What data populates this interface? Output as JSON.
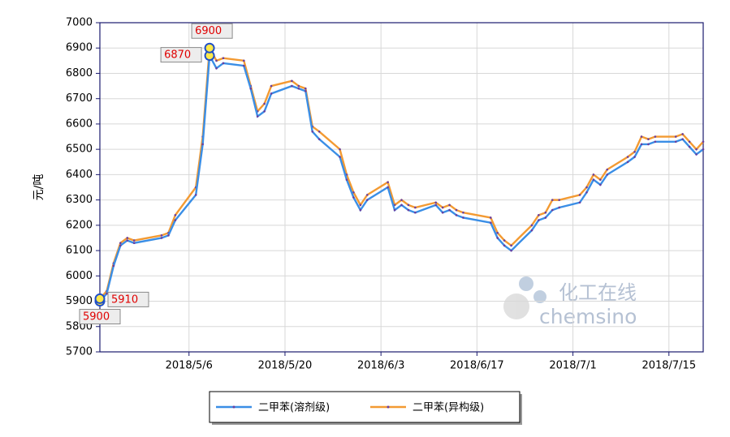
{
  "chart_data": {
    "type": "line",
    "y_label": "元/吨",
    "x": [
      "2018/4/23",
      "2018/4/24",
      "2018/4/25",
      "2018/4/26",
      "2018/4/27",
      "2018/4/28",
      "2018/5/2",
      "2018/5/3",
      "2018/5/4",
      "2018/5/7",
      "2018/5/8",
      "2018/5/9",
      "2018/5/10",
      "2018/5/11",
      "2018/5/14",
      "2018/5/15",
      "2018/5/16",
      "2018/5/17",
      "2018/5/18",
      "2018/5/21",
      "2018/5/22",
      "2018/5/23",
      "2018/5/24",
      "2018/5/25",
      "2018/5/28",
      "2018/5/29",
      "2018/5/30",
      "2018/5/31",
      "2018/6/1",
      "2018/6/4",
      "2018/6/5",
      "2018/6/6",
      "2018/6/7",
      "2018/6/8",
      "2018/6/11",
      "2018/6/12",
      "2018/6/13",
      "2018/6/14",
      "2018/6/15",
      "2018/6/19",
      "2018/6/20",
      "2018/6/21",
      "2018/6/22",
      "2018/6/25",
      "2018/6/26",
      "2018/6/27",
      "2018/6/28",
      "2018/6/29",
      "2018/7/2",
      "2018/7/3",
      "2018/7/4",
      "2018/7/5",
      "2018/7/6",
      "2018/7/9",
      "2018/7/10",
      "2018/7/11",
      "2018/7/12",
      "2018/7/13",
      "2018/7/16",
      "2018/7/17",
      "2018/7/18",
      "2018/7/19",
      "2018/7/20"
    ],
    "series": [
      {
        "name": "二甲苯(溶剂级)",
        "color": "#3a8ee6",
        "values": [
          5900,
          5930,
          6040,
          6120,
          6140,
          6130,
          6150,
          6160,
          6220,
          6320,
          6520,
          6870,
          6820,
          6840,
          6830,
          6740,
          6630,
          6650,
          6720,
          6750,
          6740,
          6730,
          6570,
          6540,
          6470,
          6380,
          6310,
          6260,
          6300,
          6350,
          6260,
          6280,
          6260,
          6250,
          6280,
          6250,
          6260,
          6240,
          6230,
          6210,
          6150,
          6120,
          6100,
          6180,
          6220,
          6230,
          6260,
          6270,
          6290,
          6330,
          6380,
          6360,
          6400,
          6450,
          6470,
          6520,
          6520,
          6530,
          6530,
          6540,
          6510,
          6480,
          6500
        ]
      },
      {
        "name": "二甲苯(异构级)",
        "color": "#f39a32",
        "values": [
          5910,
          5940,
          6050,
          6130,
          6150,
          6140,
          6160,
          6170,
          6240,
          6350,
          6550,
          6900,
          6850,
          6860,
          6850,
          6750,
          6650,
          6680,
          6750,
          6770,
          6750,
          6740,
          6590,
          6570,
          6500,
          6400,
          6330,
          6280,
          6320,
          6370,
          6280,
          6300,
          6280,
          6270,
          6290,
          6270,
          6280,
          6260,
          6250,
          6230,
          6170,
          6140,
          6120,
          6200,
          6240,
          6250,
          6300,
          6300,
          6320,
          6350,
          6400,
          6380,
          6420,
          6470,
          6490,
          6550,
          6540,
          6550,
          6550,
          6560,
          6530,
          6500,
          6530
        ]
      }
    ],
    "point_labels": [
      "first",
      "max"
    ],
    "xlim": [
      "2018/4/23",
      "2018/7/20"
    ],
    "xticks": [
      "2018/5/6",
      "2018/5/20",
      "2018/6/3",
      "2018/6/17",
      "2018/7/1",
      "2018/7/15"
    ],
    "ylim": [
      5700,
      7000
    ],
    "yticks": [
      5700,
      5800,
      5900,
      6000,
      6100,
      6200,
      6300,
      6400,
      6500,
      6600,
      6700,
      6800,
      6900,
      7000
    ],
    "grid": true,
    "legend": "bottom",
    "watermark": {
      "cn": "化工在线",
      "en": "chemsino"
    }
  }
}
